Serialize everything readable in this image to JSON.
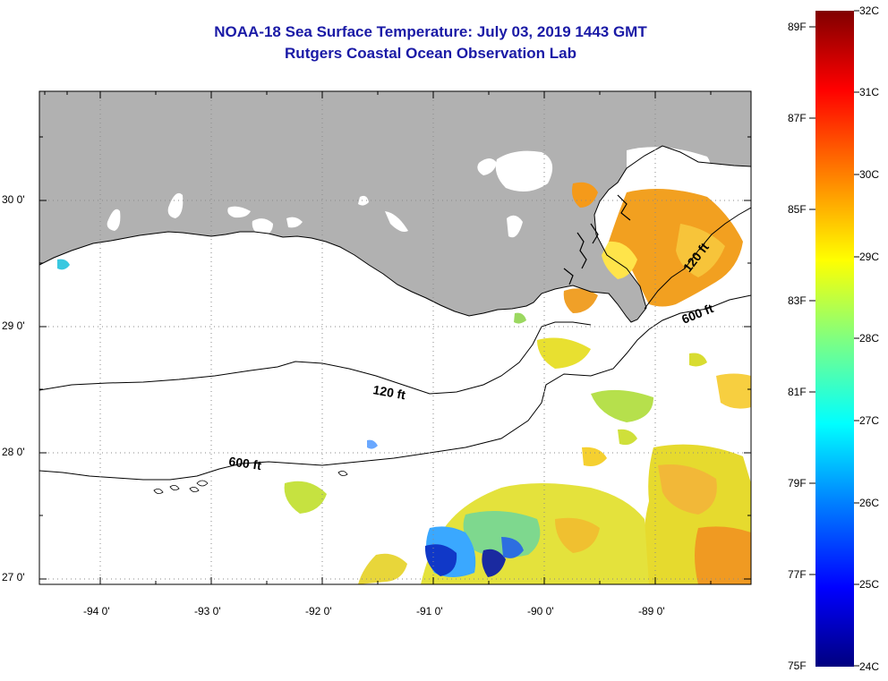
{
  "header": {
    "title": "NOAA-18 Sea Surface Temperature:  July 03, 2019 1443 GMT",
    "subtitle": "Rutgers Coastal Ocean Observation Lab"
  },
  "map": {
    "lat_labels": [
      "30 0'",
      "29 0'",
      "28 0'",
      "27 0'"
    ],
    "lon_labels": [
      "-94 0'",
      "-93 0'",
      "-92 0'",
      "-91 0'",
      "-90 0'",
      "-89 0'"
    ],
    "contour_labels": [
      "120 ft",
      "600 ft",
      "120 ft",
      "600 ft"
    ],
    "colors": {
      "land": "#b1b1b1",
      "ocean_nodata": "#ffffff",
      "grid": "#9a9a9a"
    }
  },
  "colorbar": {
    "fahrenheit": [
      "89F",
      "87F",
      "85F",
      "83F",
      "81F",
      "79F",
      "77F",
      "75F"
    ],
    "celsius": [
      "32C",
      "31C",
      "30C",
      "29C",
      "28C",
      "27C",
      "26C",
      "25C",
      "24C"
    ],
    "stops": [
      "#00007f",
      "#0000ff",
      "#0080ff",
      "#00ffff",
      "#80ff80",
      "#ffff00",
      "#ff8000",
      "#ff0000",
      "#800000"
    ]
  }
}
